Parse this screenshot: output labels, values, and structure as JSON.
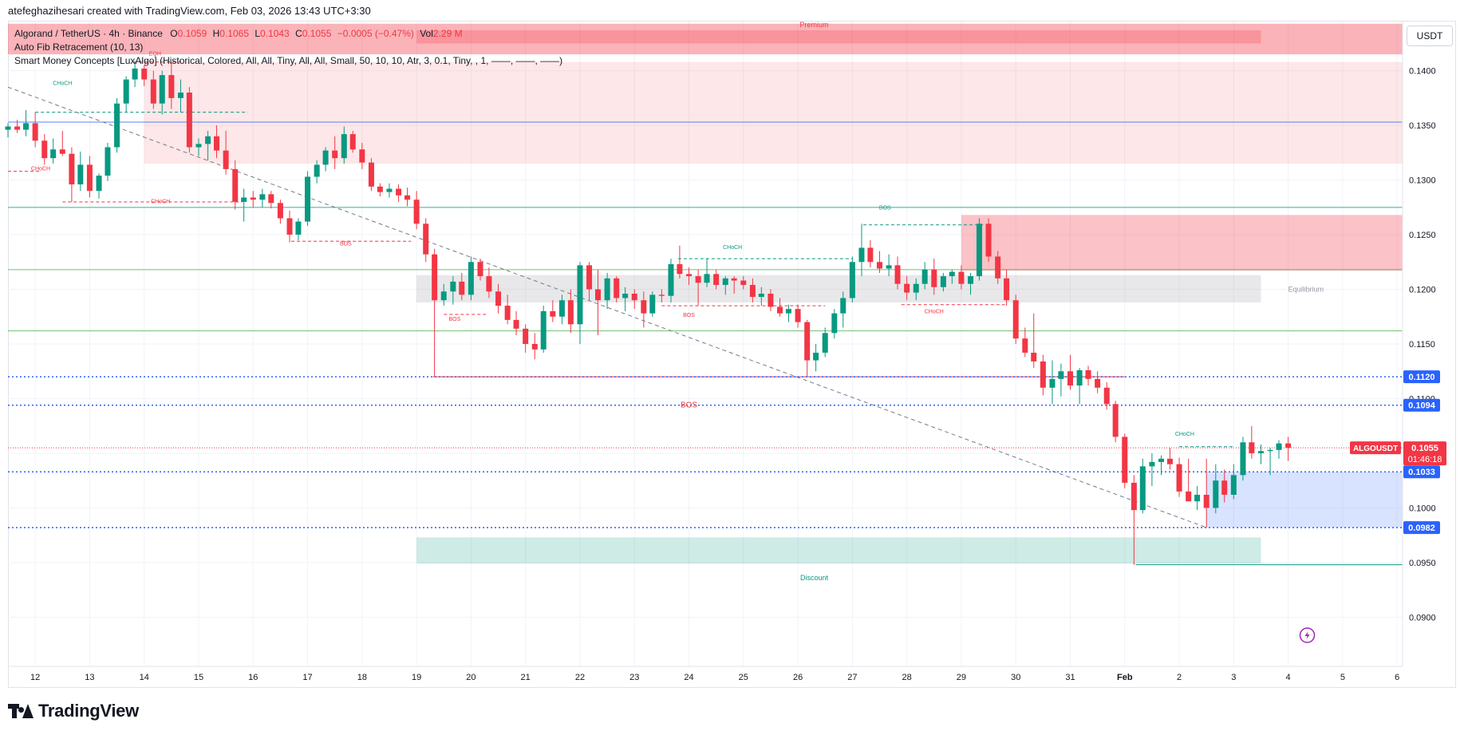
{
  "header": {
    "created_by": "atefeghazihesari created with TradingView.com, Feb 03, 2026 13:43 UTC+3:30"
  },
  "legend": {
    "symbol_line": "Algorand / TetherUS · 4h · Binance",
    "o_label": "O",
    "o_value": "0.1059",
    "h_label": "H",
    "h_value": "0.1065",
    "l_label": "L",
    "l_value": "0.1043",
    "c_label": "C",
    "c_value": "0.1055",
    "change": "−0.0005 (−0.47%)",
    "vol_label": "Vol",
    "vol_value": "2.29 M",
    "indicator_1": "Auto Fib Retracement (10, 13)",
    "indicator_2": "Smart Money Concepts [LuxAlgo] (Historical, Colored, All, All, Tiny, All, All, Small, 50, 10, 10, Atr, 3, 0.1, Tiny, , 1, ——, ——, ——)"
  },
  "currency_button": "USDT",
  "branding": "TradingView",
  "colors": {
    "up": "#089981",
    "down": "#f23645",
    "level_blue": "#2962ff",
    "premium_zone": "#f23645",
    "discount_zone": "#089981"
  },
  "chart_data": {
    "type": "candlestick",
    "symbol": "ALGOUSDT",
    "interval": "4h",
    "exchange": "Binance",
    "ylim": [
      0.0855,
      0.1445
    ],
    "y_ticks": [
      "0.1400",
      "0.1350",
      "0.1300",
      "0.1250",
      "0.1200",
      "0.1150",
      "0.1100",
      "0.1050",
      "0.1000",
      "0.0950",
      "0.0900"
    ],
    "x_ticks": [
      "12",
      "13",
      "14",
      "15",
      "16",
      "17",
      "18",
      "19",
      "20",
      "21",
      "22",
      "23",
      "24",
      "25",
      "26",
      "27",
      "28",
      "29",
      "30",
      "31",
      "Feb",
      "2",
      "3",
      "4",
      "5",
      "6"
    ],
    "x_start_day": 11.5,
    "x_end_day": 37.1,
    "last_price_label": "ALGOUSDT",
    "last_price": "0.1055",
    "countdown": "01:46:18",
    "price_lines": [
      {
        "value": 0.112,
        "label": "0.1120"
      },
      {
        "value": 0.1094,
        "label": "0.1094"
      },
      {
        "value": 0.1033,
        "label": "0.1033"
      },
      {
        "value": 0.0982,
        "label": "0.0982"
      }
    ],
    "zone_labels": {
      "premium": "Premium",
      "equilibrium": "Equilibrium",
      "discount": "Discount",
      "eqh": "EQH"
    },
    "structure_labels": [
      {
        "text": "CHoCH",
        "day": 12.5,
        "price": 0.1387,
        "color": "up"
      },
      {
        "text": "CHoCH",
        "day": 12.1,
        "price": 0.1309,
        "color": "down"
      },
      {
        "text": "CHoCH",
        "day": 14.3,
        "price": 0.1279,
        "color": "down"
      },
      {
        "text": "BOS",
        "day": 17.7,
        "price": 0.124,
        "color": "down"
      },
      {
        "text": "BOS",
        "day": 19.7,
        "price": 0.1171,
        "color": "down"
      },
      {
        "text": "BOS",
        "day": 24.0,
        "price": 0.1175,
        "color": "down"
      },
      {
        "text": "CHoCH",
        "day": 24.8,
        "price": 0.1237,
        "color": "up"
      },
      {
        "text": "BOS",
        "day": 27.6,
        "price": 0.1273,
        "color": "up"
      },
      {
        "text": "CHoCH",
        "day": 28.5,
        "price": 0.1178,
        "color": "down"
      },
      {
        "text": "BOS",
        "day": 24.0,
        "price": 0.1092,
        "color": "down"
      },
      {
        "text": "CHoCH",
        "day": 33.1,
        "price": 0.1066,
        "color": "up"
      }
    ],
    "candles": [
      [
        11.5,
        0.1346,
        0.1352,
        0.1339,
        0.1349
      ],
      [
        11.67,
        0.1349,
        0.1355,
        0.1343,
        0.1346
      ],
      [
        11.83,
        0.1346,
        0.1364,
        0.134,
        0.1352
      ],
      [
        12.0,
        0.1352,
        0.1362,
        0.133,
        0.1336
      ],
      [
        12.17,
        0.1336,
        0.1342,
        0.1314,
        0.132
      ],
      [
        12.33,
        0.132,
        0.1338,
        0.1315,
        0.1328
      ],
      [
        12.5,
        0.1328,
        0.1345,
        0.1322,
        0.1324
      ],
      [
        12.67,
        0.1324,
        0.133,
        0.128,
        0.1296
      ],
      [
        12.83,
        0.1296,
        0.1326,
        0.129,
        0.1314
      ],
      [
        13.0,
        0.1314,
        0.1322,
        0.1284,
        0.129
      ],
      [
        13.17,
        0.129,
        0.1306,
        0.1283,
        0.1304
      ],
      [
        13.33,
        0.1304,
        0.1334,
        0.1299,
        0.133
      ],
      [
        13.5,
        0.133,
        0.1375,
        0.1325,
        0.137
      ],
      [
        13.67,
        0.137,
        0.1395,
        0.1362,
        0.1392
      ],
      [
        13.83,
        0.1392,
        0.1408,
        0.1385,
        0.1402
      ],
      [
        14.0,
        0.1402,
        0.1405,
        0.1386,
        0.1392
      ],
      [
        14.17,
        0.1392,
        0.14,
        0.1365,
        0.137
      ],
      [
        14.33,
        0.137,
        0.14,
        0.136,
        0.1396
      ],
      [
        14.5,
        0.1396,
        0.1408,
        0.1365,
        0.1375
      ],
      [
        14.67,
        0.1375,
        0.1392,
        0.1362,
        0.138
      ],
      [
        14.83,
        0.138,
        0.1385,
        0.1325,
        0.133
      ],
      [
        15.0,
        0.133,
        0.1338,
        0.1322,
        0.1333
      ],
      [
        15.17,
        0.1333,
        0.1345,
        0.1318,
        0.134
      ],
      [
        15.33,
        0.134,
        0.135,
        0.132,
        0.1327
      ],
      [
        15.5,
        0.1327,
        0.1345,
        0.1305,
        0.131
      ],
      [
        15.67,
        0.131,
        0.1318,
        0.1273,
        0.128
      ],
      [
        15.83,
        0.128,
        0.1292,
        0.1262,
        0.1284
      ],
      [
        16.0,
        0.1284,
        0.129,
        0.1275,
        0.1282
      ],
      [
        16.17,
        0.1282,
        0.1292,
        0.1275,
        0.1287
      ],
      [
        16.33,
        0.1287,
        0.129,
        0.1274,
        0.1279
      ],
      [
        16.5,
        0.1279,
        0.1282,
        0.126,
        0.1265
      ],
      [
        16.67,
        0.1265,
        0.1272,
        0.1243,
        0.125
      ],
      [
        16.83,
        0.125,
        0.1265,
        0.1245,
        0.1262
      ],
      [
        17.0,
        0.1262,
        0.1308,
        0.1258,
        0.1303
      ],
      [
        17.17,
        0.1303,
        0.1318,
        0.1297,
        0.1314
      ],
      [
        17.33,
        0.1314,
        0.133,
        0.1308,
        0.1327
      ],
      [
        17.5,
        0.1327,
        0.134,
        0.131,
        0.132
      ],
      [
        17.67,
        0.132,
        0.1349,
        0.1315,
        0.1342
      ],
      [
        17.83,
        0.1342,
        0.1345,
        0.1325,
        0.1328
      ],
      [
        18.0,
        0.1328,
        0.1334,
        0.131,
        0.1316
      ],
      [
        18.17,
        0.1316,
        0.132,
        0.129,
        0.1294
      ],
      [
        18.33,
        0.1294,
        0.1297,
        0.1285,
        0.1289
      ],
      [
        18.5,
        0.1289,
        0.1297,
        0.1284,
        0.1292
      ],
      [
        18.67,
        0.1292,
        0.1296,
        0.128,
        0.1286
      ],
      [
        18.83,
        0.1286,
        0.1293,
        0.1276,
        0.1282
      ],
      [
        19.0,
        0.1282,
        0.129,
        0.1255,
        0.126
      ],
      [
        19.17,
        0.126,
        0.1265,
        0.1225,
        0.1232
      ],
      [
        19.33,
        0.1232,
        0.1237,
        0.112,
        0.119
      ],
      [
        19.5,
        0.119,
        0.1205,
        0.1185,
        0.1198
      ],
      [
        19.67,
        0.1198,
        0.1212,
        0.1186,
        0.1207
      ],
      [
        19.83,
        0.1207,
        0.1215,
        0.119,
        0.1195
      ],
      [
        20.0,
        0.1195,
        0.123,
        0.119,
        0.1225
      ],
      [
        20.17,
        0.1225,
        0.1228,
        0.1208,
        0.1212
      ],
      [
        20.33,
        0.1212,
        0.122,
        0.1192,
        0.1198
      ],
      [
        20.5,
        0.1198,
        0.1205,
        0.1178,
        0.1185
      ],
      [
        20.67,
        0.1185,
        0.1195,
        0.1168,
        0.1172
      ],
      [
        20.83,
        0.1172,
        0.118,
        0.1158,
        0.1164
      ],
      [
        21.0,
        0.1164,
        0.1168,
        0.1142,
        0.115
      ],
      [
        21.17,
        0.115,
        0.116,
        0.1136,
        0.1145
      ],
      [
        21.33,
        0.1145,
        0.1185,
        0.1142,
        0.118
      ],
      [
        21.5,
        0.118,
        0.119,
        0.117,
        0.1175
      ],
      [
        21.67,
        0.1175,
        0.1195,
        0.1168,
        0.119
      ],
      [
        21.83,
        0.119,
        0.12,
        0.116,
        0.1168
      ],
      [
        22.0,
        0.1168,
        0.1225,
        0.115,
        0.1222
      ],
      [
        22.17,
        0.1222,
        0.1225,
        0.119,
        0.12
      ],
      [
        22.33,
        0.12,
        0.1218,
        0.1158,
        0.119
      ],
      [
        22.5,
        0.119,
        0.1215,
        0.1182,
        0.121
      ],
      [
        22.67,
        0.121,
        0.1212,
        0.1188,
        0.1192
      ],
      [
        22.83,
        0.1192,
        0.1202,
        0.118,
        0.1196
      ],
      [
        23.0,
        0.1196,
        0.12,
        0.1182,
        0.119
      ],
      [
        23.17,
        0.119,
        0.1198,
        0.1165,
        0.1178
      ],
      [
        23.33,
        0.1178,
        0.1198,
        0.1175,
        0.1195
      ],
      [
        23.5,
        0.1195,
        0.12,
        0.1188,
        0.1194
      ],
      [
        23.67,
        0.1194,
        0.1228,
        0.1188,
        0.1223
      ],
      [
        23.83,
        0.1223,
        0.124,
        0.121,
        0.1214
      ],
      [
        24.0,
        0.1214,
        0.122,
        0.1204,
        0.1212
      ],
      [
        24.17,
        0.1212,
        0.1218,
        0.1185,
        0.1206
      ],
      [
        24.33,
        0.1206,
        0.1228,
        0.1202,
        0.1214
      ],
      [
        24.5,
        0.1214,
        0.1218,
        0.12,
        0.1204
      ],
      [
        24.67,
        0.1204,
        0.1212,
        0.1195,
        0.121
      ],
      [
        24.83,
        0.121,
        0.1212,
        0.1196,
        0.1208
      ],
      [
        25.0,
        0.1208,
        0.1212,
        0.12,
        0.1204
      ],
      [
        25.17,
        0.1204,
        0.121,
        0.1188,
        0.1193
      ],
      [
        25.33,
        0.1193,
        0.1202,
        0.1185,
        0.1196
      ],
      [
        25.5,
        0.1196,
        0.12,
        0.118,
        0.1184
      ],
      [
        25.67,
        0.1184,
        0.1192,
        0.1175,
        0.1178
      ],
      [
        25.83,
        0.1178,
        0.1186,
        0.117,
        0.1182
      ],
      [
        26.0,
        0.1182,
        0.1186,
        0.1165,
        0.117
      ],
      [
        26.17,
        0.117,
        0.1172,
        0.112,
        0.1135
      ],
      [
        26.33,
        0.1135,
        0.115,
        0.1125,
        0.1142
      ],
      [
        26.5,
        0.1142,
        0.1165,
        0.1138,
        0.116
      ],
      [
        26.67,
        0.116,
        0.1182,
        0.1155,
        0.1178
      ],
      [
        26.83,
        0.1178,
        0.1198,
        0.1165,
        0.1192
      ],
      [
        27.0,
        0.1192,
        0.123,
        0.1188,
        0.1225
      ],
      [
        27.17,
        0.1225,
        0.126,
        0.1212,
        0.1238
      ],
      [
        27.33,
        0.1238,
        0.1245,
        0.122,
        0.1225
      ],
      [
        27.5,
        0.1225,
        0.1235,
        0.1215,
        0.1219
      ],
      [
        27.67,
        0.1219,
        0.1232,
        0.1212,
        0.1222
      ],
      [
        27.83,
        0.1222,
        0.123,
        0.12,
        0.1205
      ],
      [
        28.0,
        0.1205,
        0.1212,
        0.119,
        0.1197
      ],
      [
        28.17,
        0.1197,
        0.121,
        0.119,
        0.1205
      ],
      [
        28.33,
        0.1205,
        0.1225,
        0.12,
        0.1218
      ],
      [
        28.5,
        0.1218,
        0.1228,
        0.1195,
        0.1202
      ],
      [
        28.67,
        0.1202,
        0.1215,
        0.1198,
        0.1212
      ],
      [
        28.83,
        0.1212,
        0.1218,
        0.1205,
        0.1216
      ],
      [
        29.0,
        0.1216,
        0.1222,
        0.12,
        0.1205
      ],
      [
        29.17,
        0.1205,
        0.1215,
        0.1195,
        0.1212
      ],
      [
        29.33,
        0.1212,
        0.1265,
        0.1208,
        0.126
      ],
      [
        29.5,
        0.126,
        0.1265,
        0.1225,
        0.123
      ],
      [
        29.67,
        0.123,
        0.1235,
        0.1205,
        0.121
      ],
      [
        29.83,
        0.121,
        0.1218,
        0.1185,
        0.119
      ],
      [
        30.0,
        0.119,
        0.1195,
        0.115,
        0.1155
      ],
      [
        30.17,
        0.1155,
        0.1165,
        0.1138,
        0.1142
      ],
      [
        30.33,
        0.1142,
        0.1178,
        0.1128,
        0.1134
      ],
      [
        30.5,
        0.1134,
        0.114,
        0.1103,
        0.111
      ],
      [
        30.67,
        0.111,
        0.1135,
        0.1095,
        0.1118
      ],
      [
        30.83,
        0.1118,
        0.1132,
        0.1102,
        0.1125
      ],
      [
        31.0,
        0.1125,
        0.114,
        0.1108,
        0.1112
      ],
      [
        31.17,
        0.1112,
        0.1128,
        0.1095,
        0.1126
      ],
      [
        31.33,
        0.1126,
        0.113,
        0.1112,
        0.1118
      ],
      [
        31.5,
        0.1118,
        0.1125,
        0.1105,
        0.111
      ],
      [
        31.67,
        0.111,
        0.1115,
        0.109,
        0.1095
      ],
      [
        31.83,
        0.1095,
        0.1098,
        0.106,
        0.1065
      ],
      [
        32.0,
        0.1065,
        0.1068,
        0.1018,
        0.1023
      ],
      [
        32.17,
        0.1023,
        0.103,
        0.0948,
        0.0998
      ],
      [
        32.33,
        0.0998,
        0.1045,
        0.0995,
        0.1038
      ],
      [
        32.5,
        0.1038,
        0.105,
        0.102,
        0.1042
      ],
      [
        32.67,
        0.1042,
        0.1048,
        0.103,
        0.1045
      ],
      [
        32.83,
        0.1045,
        0.1055,
        0.1035,
        0.104
      ],
      [
        33.0,
        0.104,
        0.1046,
        0.101,
        0.1015
      ],
      [
        33.17,
        0.1015,
        0.1045,
        0.101,
        0.1006
      ],
      [
        33.33,
        0.1006,
        0.102,
        0.0998,
        0.1012
      ],
      [
        33.5,
        0.1012,
        0.1045,
        0.0982,
        0.1
      ],
      [
        33.67,
        0.1,
        0.104,
        0.0995,
        0.1025
      ],
      [
        33.83,
        0.1025,
        0.1035,
        0.1005,
        0.1012
      ],
      [
        34.0,
        0.1012,
        0.104,
        0.1008,
        0.103
      ],
      [
        34.17,
        0.103,
        0.1065,
        0.1025,
        0.106
      ],
      [
        34.33,
        0.106,
        0.1075,
        0.1045,
        0.105
      ],
      [
        34.5,
        0.105,
        0.1058,
        0.104,
        0.1052
      ],
      [
        34.67,
        0.1052,
        0.1055,
        0.103,
        0.1053
      ],
      [
        34.83,
        0.1053,
        0.1062,
        0.1045,
        0.1059
      ],
      [
        35.0,
        0.1059,
        0.1065,
        0.1043,
        0.1055
      ]
    ]
  }
}
